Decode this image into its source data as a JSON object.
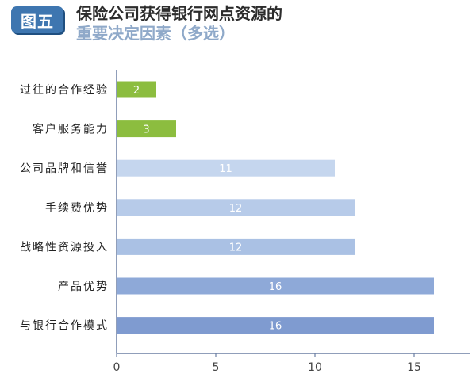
{
  "header": {
    "badge": "图五",
    "title": "保险公司获得银行网点资源的",
    "subtitle": "重要决定因素（多选）"
  },
  "chart_data": {
    "type": "bar",
    "orientation": "horizontal",
    "categories": [
      "过往的合作经验",
      "客户服务能力",
      "公司品牌和信誉",
      "手续费优势",
      "战略性资源投入",
      "产品优势",
      "与银行合作模式"
    ],
    "values": [
      2,
      3,
      11,
      12,
      12,
      16,
      16
    ],
    "bar_colors": [
      "#8cbd3f",
      "#8cbd3f",
      "#c5d6ee",
      "#b7cbe9",
      "#aac1e4",
      "#8ea9d8",
      "#7f9bd0"
    ],
    "xlim": [
      0,
      17
    ],
    "xticks": [
      0,
      5,
      10,
      15
    ],
    "grid": false,
    "data_labels": true
  }
}
